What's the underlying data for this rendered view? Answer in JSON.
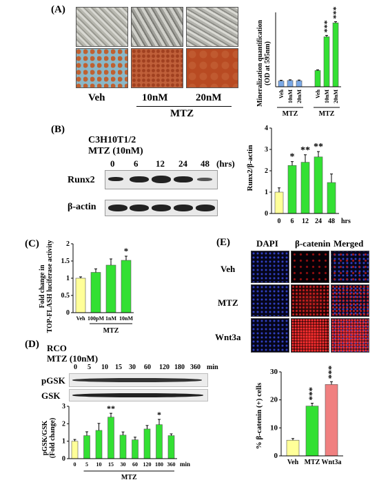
{
  "panelA": {
    "label": "(A)",
    "groups": [
      "Veh",
      "10nM",
      "20nM"
    ],
    "drug": "MTZ",
    "chart": {
      "type": "bar",
      "ylabel": "Mineralization quantification\n(OD at 595nm)",
      "categories": [
        "Veh",
        "10nM",
        "20nM",
        "Veh",
        "10nM",
        "20nM"
      ],
      "group_labels": [
        "MTZ",
        "MTZ"
      ],
      "values": [
        0.25,
        0.27,
        0.26,
        0.7,
        2.15,
        2.75
      ],
      "errors": [
        0.03,
        0.03,
        0.03,
        0.03,
        0.06,
        0.05
      ],
      "colors": [
        "#7aa8e6",
        "#7aa8e6",
        "#7aa8e6",
        "#33e033",
        "#33e033",
        "#33e033"
      ],
      "sig": [
        "",
        "",
        "",
        "",
        "***",
        "***"
      ],
      "ylim": [
        0,
        3.2
      ]
    }
  },
  "panelB": {
    "label": "(B)",
    "cell": "C3H10T1/2",
    "treatment": "MTZ (10nM)",
    "times": [
      "0",
      "6",
      "12",
      "24",
      "48"
    ],
    "time_unit": "(hrs)",
    "rows": [
      "Runx2",
      "β-actin"
    ],
    "chart": {
      "type": "bar",
      "ylabel": "Runx2/β-actin",
      "categories": [
        "0",
        "6",
        "12",
        "24",
        "48"
      ],
      "xunit": "hrs",
      "values": [
        1.0,
        2.25,
        2.4,
        2.65,
        1.45
      ],
      "errors": [
        0.2,
        0.18,
        0.35,
        0.25,
        0.4
      ],
      "colors": [
        "#ffff99",
        "#33e033",
        "#33e033",
        "#33e033",
        "#33e033"
      ],
      "sig": [
        "",
        "*",
        "**",
        "**",
        ""
      ],
      "ylim": [
        0,
        4
      ],
      "yticks": [
        0,
        1,
        2,
        3,
        4
      ]
    }
  },
  "panelC": {
    "label": "(C)",
    "chart": {
      "type": "bar",
      "ylabel": "Fold change in\nTOP-FLASH luciferase activity",
      "categories": [
        "Veh",
        "100pM",
        "1nM",
        "10nM"
      ],
      "group_label": "MTZ",
      "values": [
        1.0,
        1.17,
        1.38,
        1.52
      ],
      "errors": [
        0.04,
        0.1,
        0.18,
        0.12
      ],
      "colors": [
        "#ffff99",
        "#33e033",
        "#33e033",
        "#33e033"
      ],
      "sig": [
        "",
        "",
        "",
        "*"
      ],
      "ylim": [
        0,
        2
      ],
      "yticks": [
        0,
        0.5,
        1,
        1.5,
        2
      ]
    }
  },
  "panelD": {
    "label": "(D)",
    "cell": "RCO",
    "treatment": "MTZ (10nM)",
    "times": [
      "0",
      "5",
      "10",
      "15",
      "30",
      "60",
      "120",
      "180",
      "360"
    ],
    "time_unit": "min",
    "rows": [
      "pGSK",
      "GSK"
    ],
    "chart": {
      "type": "bar",
      "ylabel": "pGSK/GSK\n(Fold change)",
      "categories": [
        "0",
        "5",
        "10",
        "15",
        "30",
        "60",
        "120",
        "180",
        "360"
      ],
      "xunit": "min",
      "group_label": "MTZ",
      "values": [
        1.0,
        1.32,
        1.62,
        2.38,
        1.35,
        1.08,
        1.7,
        1.95,
        1.32
      ],
      "errors": [
        0.1,
        0.22,
        0.4,
        0.22,
        0.18,
        0.15,
        0.2,
        0.3,
        0.1
      ],
      "colors": [
        "#ffff99",
        "#33e033",
        "#33e033",
        "#33e033",
        "#33e033",
        "#33e033",
        "#33e033",
        "#33e033",
        "#33e033"
      ],
      "sig": [
        "",
        "",
        "",
        "**",
        "",
        "",
        "",
        "*",
        ""
      ],
      "ylim": [
        0,
        3
      ],
      "yticks": [
        0,
        1,
        2,
        3
      ]
    }
  },
  "panelE": {
    "label": "(E)",
    "columns": [
      "DAPI",
      "β-catenin",
      "Merged"
    ],
    "rows": [
      "Veh",
      "MTZ",
      "Wnt3a"
    ],
    "chart": {
      "type": "bar",
      "ylabel": "% β-catenin (+) cells",
      "categories": [
        "Veh",
        "MTZ",
        "Wnt3a"
      ],
      "values": [
        5.6,
        17.8,
        25.5
      ],
      "errors": [
        0.6,
        1.0,
        1.0
      ],
      "colors": [
        "#ffff99",
        "#33e033",
        "#f08080"
      ],
      "sig": [
        "",
        "***",
        "***"
      ],
      "ylim": [
        0,
        30
      ],
      "yticks": [
        0,
        10,
        20,
        30
      ]
    }
  }
}
